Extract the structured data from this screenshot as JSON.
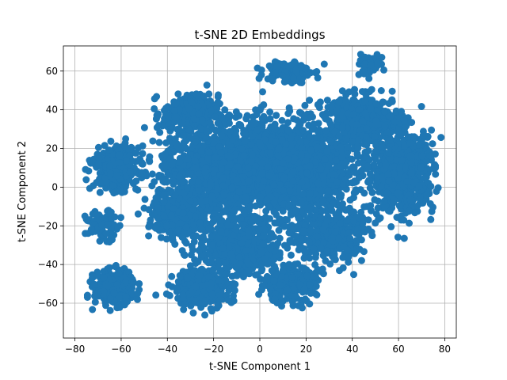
{
  "chart_data": {
    "type": "scatter",
    "title": "t-SNE 2D Embeddings",
    "xlabel": "t-SNE Component 1",
    "ylabel": "t-SNE Component 2",
    "xlim": [
      -85,
      85
    ],
    "ylim": [
      -78,
      73
    ],
    "xticks": [
      -80,
      -60,
      -40,
      -20,
      0,
      20,
      40,
      60,
      80
    ],
    "yticks": [
      -60,
      -40,
      -20,
      0,
      20,
      40,
      60
    ],
    "xtick_labels": [
      "−80",
      "−60",
      "−40",
      "−20",
      "0",
      "20",
      "40",
      "60",
      "80"
    ],
    "ytick_labels": [
      "−60",
      "−40",
      "−20",
      "0",
      "20",
      "40",
      "60"
    ],
    "grid": true,
    "marker_color": "#1f77b4",
    "clusters": [
      {
        "center": [
          8,
          10
        ],
        "spread": [
          26,
          20
        ],
        "count": 2200
      },
      {
        "center": [
          -22,
          8
        ],
        "spread": [
          18,
          18
        ],
        "count": 700
      },
      {
        "center": [
          -62,
          10
        ],
        "spread": [
          8,
          9
        ],
        "count": 350
      },
      {
        "center": [
          -63,
          -52
        ],
        "spread": [
          7,
          7
        ],
        "count": 320
      },
      {
        "center": [
          -68,
          -20
        ],
        "spread": [
          6,
          6
        ],
        "count": 80
      },
      {
        "center": [
          -25,
          -52
        ],
        "spread": [
          10,
          8
        ],
        "count": 320
      },
      {
        "center": [
          12,
          -50
        ],
        "spread": [
          10,
          8
        ],
        "count": 250
      },
      {
        "center": [
          62,
          8
        ],
        "spread": [
          11,
          17
        ],
        "count": 700
      },
      {
        "center": [
          45,
          35
        ],
        "spread": [
          14,
          10
        ],
        "count": 400
      },
      {
        "center": [
          47,
          63
        ],
        "spread": [
          5,
          4
        ],
        "count": 60
      },
      {
        "center": [
          12,
          60
        ],
        "spread": [
          8,
          5
        ],
        "count": 120
      },
      {
        "center": [
          30,
          -25
        ],
        "spread": [
          12,
          12
        ],
        "count": 400
      },
      {
        "center": [
          -10,
          -30
        ],
        "spread": [
          14,
          12
        ],
        "count": 500
      },
      {
        "center": [
          -35,
          -15
        ],
        "spread": [
          10,
          10
        ],
        "count": 300
      },
      {
        "center": [
          -30,
          38
        ],
        "spread": [
          10,
          8
        ],
        "count": 250
      }
    ]
  }
}
